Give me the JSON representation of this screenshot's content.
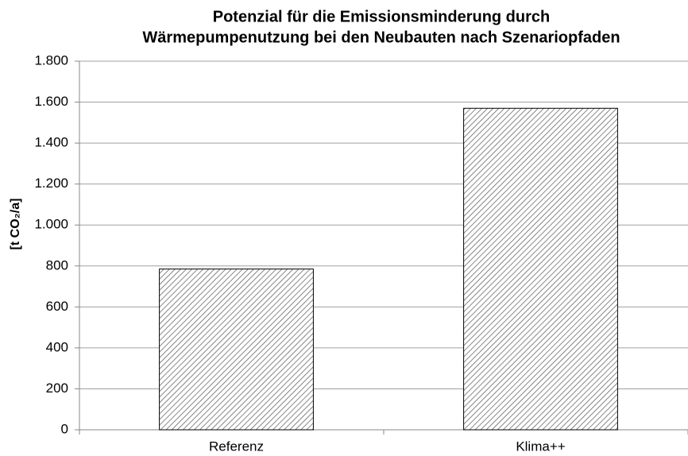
{
  "chart_data": {
    "type": "bar",
    "title": [
      "Potenzial für die Emissionsminderung durch",
      "Wärmepumpenutzung bei den Neubauten nach Szenariopfaden"
    ],
    "y_label": "[t CO₂/a]",
    "categories": [
      "Referenz",
      "Klima++"
    ],
    "values": [
      785,
      1570
    ],
    "color": "#555555",
    "ylim": [
      0,
      1800
    ],
    "yticks": [
      0,
      200,
      400,
      600,
      800,
      {
        "value": 1000,
        "label": "1.000"
      },
      {
        "value": 1200,
        "label": "1.200"
      },
      {
        "value": 1400,
        "label": "1.400"
      },
      {
        "value": 1600,
        "label": "1.600"
      },
      {
        "value": 1800,
        "label": "1.800"
      }
    ],
    "grid": true
  }
}
